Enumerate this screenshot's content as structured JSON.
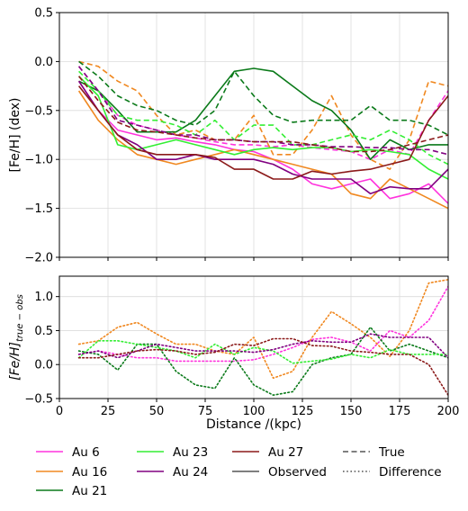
{
  "chart_data": [
    {
      "type": "line",
      "panel": "top",
      "ylabel": "[Fe/H] (dex)",
      "xlim": [
        0,
        200
      ],
      "ylim": [
        -2.0,
        0.5
      ],
      "yticks": [
        0.5,
        0.0,
        -0.5,
        -1.0,
        -1.5,
        -2.0
      ],
      "ytick_labels": [
        "0.5",
        "0.0",
        "−0.5",
        "−1.0",
        "−1.5",
        "−2.0"
      ],
      "grid": true,
      "x": [
        10,
        20,
        30,
        40,
        50,
        60,
        70,
        80,
        90,
        100,
        110,
        120,
        130,
        140,
        150,
        160,
        170,
        180,
        190,
        200
      ],
      "series": [
        {
          "name": "Au 6",
          "color": "#ff33dd",
          "style": "dashed",
          "values": [
            -0.05,
            -0.3,
            -0.55,
            -0.65,
            -0.7,
            -0.75,
            -0.78,
            -0.82,
            -0.85,
            -0.85,
            -0.87,
            -0.85,
            -0.88,
            -0.9,
            -0.92,
            -1.0,
            -0.9,
            -0.95,
            -0.6,
            -0.3
          ]
        },
        {
          "name": "Au 6",
          "color": "#ff33dd",
          "style": "solid",
          "values": [
            -0.2,
            -0.5,
            -0.7,
            -0.75,
            -0.8,
            -0.78,
            -0.82,
            -0.85,
            -0.9,
            -0.92,
            -1.0,
            -1.1,
            -1.25,
            -1.3,
            -1.25,
            -1.2,
            -1.4,
            -1.35,
            -1.25,
            -1.45
          ]
        },
        {
          "name": "Au 16",
          "color": "#f08820",
          "style": "dashed",
          "values": [
            0.0,
            -0.05,
            -0.2,
            -0.3,
            -0.55,
            -0.75,
            -0.7,
            -0.8,
            -0.8,
            -0.55,
            -0.95,
            -0.95,
            -0.7,
            -0.35,
            -0.75,
            -1.0,
            -1.1,
            -0.8,
            -0.2,
            -0.25
          ]
        },
        {
          "name": "Au 16",
          "color": "#f08820",
          "style": "solid",
          "values": [
            -0.3,
            -0.6,
            -0.8,
            -0.95,
            -1.0,
            -1.05,
            -1.0,
            -0.95,
            -0.9,
            -0.95,
            -1.0,
            -1.05,
            -1.1,
            -1.15,
            -1.35,
            -1.4,
            -1.2,
            -1.3,
            -1.4,
            -1.5
          ]
        },
        {
          "name": "Au 21",
          "color": "#0b7a1a",
          "style": "dashed",
          "values": [
            0.0,
            -0.15,
            -0.35,
            -0.45,
            -0.5,
            -0.6,
            -0.65,
            -0.5,
            -0.1,
            -0.35,
            -0.55,
            -0.62,
            -0.6,
            -0.6,
            -0.6,
            -0.45,
            -0.6,
            -0.6,
            -0.65,
            -0.75
          ]
        },
        {
          "name": "Au 21",
          "color": "#0b7a1a",
          "style": "solid",
          "values": [
            -0.2,
            -0.3,
            -0.5,
            -0.72,
            -0.72,
            -0.72,
            -0.6,
            -0.35,
            -0.1,
            -0.07,
            -0.1,
            -0.25,
            -0.4,
            -0.5,
            -0.7,
            -1.0,
            -0.8,
            -0.9,
            -0.85,
            -0.85
          ]
        },
        {
          "name": "Au 23",
          "color": "#33ee33",
          "style": "dashed",
          "values": [
            -0.1,
            -0.3,
            -0.55,
            -0.6,
            -0.6,
            -0.65,
            -0.75,
            -0.6,
            -0.8,
            -0.65,
            -0.65,
            -0.85,
            -0.85,
            -0.8,
            -0.75,
            -0.8,
            -0.7,
            -0.8,
            -0.95,
            -1.05
          ]
        },
        {
          "name": "Au 23",
          "color": "#33ee33",
          "style": "solid",
          "values": [
            -0.15,
            -0.35,
            -0.85,
            -0.9,
            -0.85,
            -0.8,
            -0.85,
            -0.9,
            -0.95,
            -0.9,
            -0.88,
            -0.9,
            -0.88,
            -0.88,
            -0.92,
            -0.9,
            -0.92,
            -0.95,
            -1.1,
            -1.2
          ]
        },
        {
          "name": "Au 24",
          "color": "#800080",
          "style": "dashed",
          "values": [
            -0.05,
            -0.3,
            -0.6,
            -0.65,
            -0.7,
            -0.75,
            -0.75,
            -0.8,
            -0.8,
            -0.82,
            -0.82,
            -0.85,
            -0.85,
            -0.87,
            -0.87,
            -0.88,
            -0.88,
            -0.9,
            -0.9,
            -0.95
          ]
        },
        {
          "name": "Au 24",
          "color": "#800080",
          "style": "solid",
          "values": [
            -0.2,
            -0.5,
            -0.75,
            -0.85,
            -1.0,
            -1.0,
            -0.95,
            -1.0,
            -1.0,
            -1.0,
            -1.05,
            -1.15,
            -1.2,
            -1.2,
            -1.2,
            -1.35,
            -1.28,
            -1.3,
            -1.3,
            -1.1
          ]
        },
        {
          "name": "Au 27",
          "color": "#8b1a1a",
          "style": "dashed",
          "values": [
            -0.15,
            -0.4,
            -0.62,
            -0.7,
            -0.72,
            -0.75,
            -0.78,
            -0.8,
            -0.8,
            -0.82,
            -0.82,
            -0.82,
            -0.85,
            -0.88,
            -0.92,
            -0.92,
            -0.9,
            -0.85,
            -0.8,
            -0.75
          ]
        },
        {
          "name": "Au 27",
          "color": "#8b1a1a",
          "style": "solid",
          "values": [
            -0.25,
            -0.5,
            -0.75,
            -0.9,
            -0.95,
            -0.95,
            -0.95,
            -0.98,
            -1.1,
            -1.1,
            -1.2,
            -1.2,
            -1.12,
            -1.15,
            -1.12,
            -1.1,
            -1.05,
            -1.0,
            -0.6,
            -0.35
          ]
        }
      ]
    },
    {
      "type": "line",
      "panel": "bottom",
      "xlabel": "Distance /(kpc)",
      "ylabel": "[Fe/H]",
      "ylabel_sub": "true − obs",
      "xlim": [
        0,
        200
      ],
      "ylim": [
        -0.5,
        1.3
      ],
      "xticks": [
        0,
        25,
        50,
        75,
        100,
        125,
        150,
        175,
        200
      ],
      "yticks": [
        1.0,
        0.5,
        0.0,
        -0.5
      ],
      "ytick_labels": [
        "1.0",
        "0.5",
        "0.0",
        "−0.5"
      ],
      "grid": true,
      "x": [
        10,
        20,
        30,
        40,
        50,
        60,
        70,
        80,
        90,
        100,
        110,
        120,
        130,
        140,
        150,
        160,
        170,
        180,
        190,
        200
      ],
      "series": [
        {
          "name": "Au 6",
          "color": "#ff33dd",
          "style": "dotted",
          "values": [
            0.15,
            0.2,
            0.15,
            0.1,
            0.1,
            0.05,
            0.05,
            0.05,
            0.05,
            0.07,
            0.15,
            0.25,
            0.37,
            0.4,
            0.33,
            0.2,
            0.5,
            0.4,
            0.65,
            1.15
          ]
        },
        {
          "name": "Au 16",
          "color": "#f08820",
          "style": "dotted",
          "values": [
            0.3,
            0.35,
            0.55,
            0.62,
            0.45,
            0.3,
            0.3,
            0.2,
            0.15,
            0.4,
            -0.2,
            -0.1,
            0.4,
            0.78,
            0.6,
            0.4,
            0.12,
            0.5,
            1.2,
            1.25
          ]
        },
        {
          "name": "Au 21",
          "color": "#0b7a1a",
          "style": "dotted",
          "values": [
            0.2,
            0.15,
            -0.08,
            0.3,
            0.3,
            -0.1,
            -0.3,
            -0.35,
            0.1,
            -0.3,
            -0.45,
            -0.4,
            0.0,
            0.1,
            0.15,
            0.55,
            0.2,
            0.3,
            0.2,
            0.1
          ]
        },
        {
          "name": "Au 23",
          "color": "#33ee33",
          "style": "dotted",
          "values": [
            0.1,
            0.35,
            0.35,
            0.3,
            0.25,
            0.2,
            0.1,
            0.3,
            0.15,
            0.25,
            0.2,
            0.02,
            0.05,
            0.08,
            0.15,
            0.1,
            0.22,
            0.15,
            0.15,
            0.15
          ]
        },
        {
          "name": "Au 24",
          "color": "#800080",
          "style": "dotted",
          "values": [
            0.15,
            0.2,
            0.1,
            0.2,
            0.3,
            0.25,
            0.2,
            0.2,
            0.2,
            0.18,
            0.22,
            0.3,
            0.35,
            0.33,
            0.33,
            0.45,
            0.4,
            0.4,
            0.4,
            0.1
          ]
        },
        {
          "name": "Au 27",
          "color": "#8b1a1a",
          "style": "dotted",
          "values": [
            0.1,
            0.1,
            0.15,
            0.2,
            0.22,
            0.2,
            0.15,
            0.18,
            0.3,
            0.28,
            0.38,
            0.38,
            0.28,
            0.27,
            0.2,
            0.18,
            0.15,
            0.15,
            0.0,
            -0.45
          ]
        }
      ]
    }
  ],
  "legend": {
    "placement": "bottom",
    "entries": [
      {
        "label": "Au 6",
        "color": "#ff33dd",
        "style": "solid"
      },
      {
        "label": "Au 16",
        "color": "#f08820",
        "style": "solid"
      },
      {
        "label": "Au 21",
        "color": "#0b7a1a",
        "style": "solid"
      },
      {
        "label": "Au 23",
        "color": "#33ee33",
        "style": "solid"
      },
      {
        "label": "Au 24",
        "color": "#800080",
        "style": "solid"
      },
      {
        "label": "Au 27",
        "color": "#8b1a1a",
        "style": "solid"
      },
      {
        "label": "Observed",
        "color": "#555555",
        "style": "solid"
      },
      {
        "label": "True",
        "color": "#555555",
        "style": "dashed"
      },
      {
        "label": "Difference",
        "color": "#555555",
        "style": "dotted"
      }
    ]
  }
}
